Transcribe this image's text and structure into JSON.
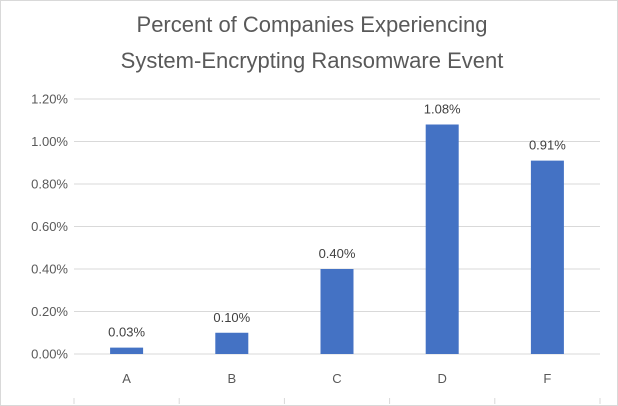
{
  "chart_data": {
    "type": "bar",
    "title_lines": [
      "Percent of Companies Experiencing",
      "System-Encrypting Ransomware Event"
    ],
    "categories": [
      "A",
      "B",
      "C",
      "D",
      "F"
    ],
    "values": [
      0.03,
      0.1,
      0.4,
      1.08,
      0.91
    ],
    "data_labels": [
      "0.03%",
      "0.10%",
      "0.40%",
      "1.08%",
      "0.91%"
    ],
    "xlabel": "",
    "ylabel": "",
    "ylim": [
      0,
      1.2
    ],
    "y_ticks": [
      0,
      0.2,
      0.4,
      0.6,
      0.8,
      1.0,
      1.2
    ],
    "y_tick_labels": [
      "0.00%",
      "0.20%",
      "0.40%",
      "0.60%",
      "0.80%",
      "1.00%",
      "1.20%"
    ],
    "grid": true,
    "legend": "none",
    "bar_color": "#4472C4",
    "grid_color": "#D9D9D9"
  }
}
